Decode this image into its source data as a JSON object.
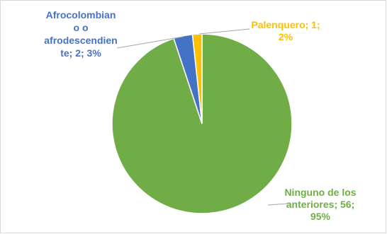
{
  "chart_data": {
    "type": "pie",
    "title": "",
    "slices": [
      {
        "label_lines": [
          "Ninguno de los",
          "anteriores;  56;",
          "95%"
        ],
        "category": "Ninguno de los anteriores",
        "value": 56,
        "percent_label": "95%",
        "color": "#70ad47"
      },
      {
        "label_lines": [
          "Afrocolombian",
          "o o",
          "afrodescendien",
          "te; 2; 3%"
        ],
        "category": "Afrocolombiano o afrodescendiente",
        "value": 2,
        "percent_label": "3%",
        "color": "#4472c4"
      },
      {
        "label_lines": [
          "Palenquero; 1;",
          "2%"
        ],
        "category": "Palenquero",
        "value": 1,
        "percent_label": "2%",
        "color": "#ffc000"
      }
    ],
    "legend": "none"
  }
}
